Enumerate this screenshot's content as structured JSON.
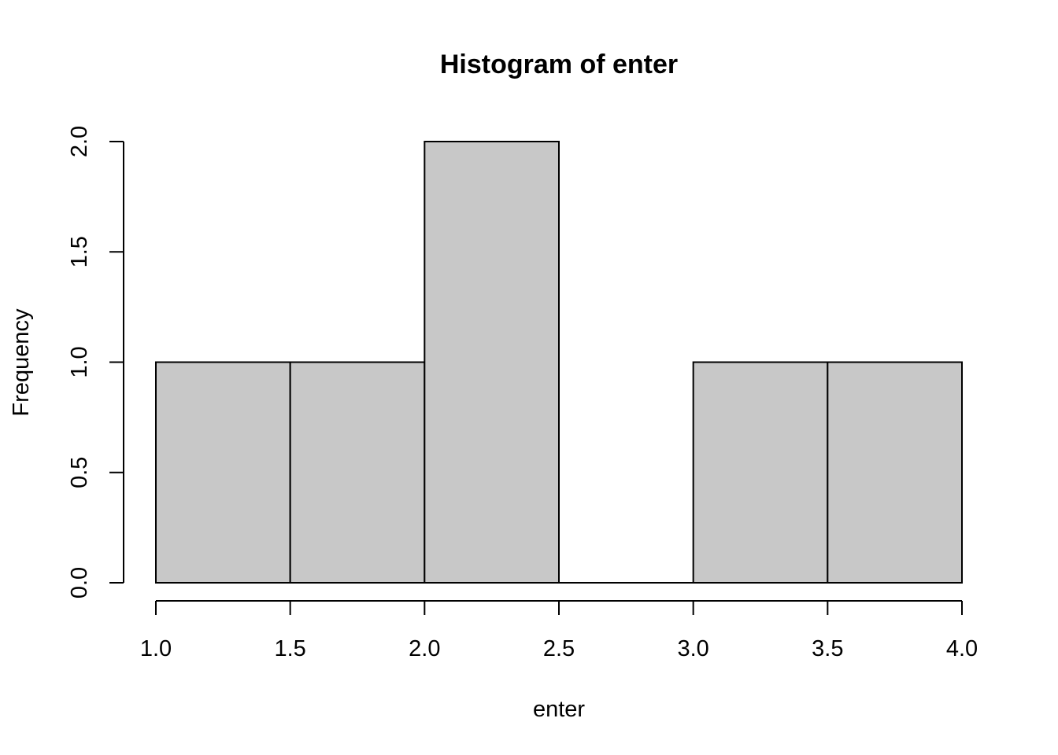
{
  "chart_data": {
    "type": "bar",
    "title": "Histogram of enter",
    "xlabel": "enter",
    "ylabel": "Frequency",
    "bins": [
      {
        "start": 1.0,
        "end": 1.5,
        "count": 1
      },
      {
        "start": 1.5,
        "end": 2.0,
        "count": 1
      },
      {
        "start": 2.0,
        "end": 2.5,
        "count": 2
      },
      {
        "start": 2.5,
        "end": 3.0,
        "count": 0
      },
      {
        "start": 3.0,
        "end": 3.5,
        "count": 1
      },
      {
        "start": 3.5,
        "end": 4.0,
        "count": 1
      }
    ],
    "xlim": [
      1.0,
      4.0
    ],
    "ylim": [
      0,
      2.0
    ],
    "x_ticks": [
      "1.0",
      "1.5",
      "2.0",
      "2.5",
      "3.0",
      "3.5",
      "4.0"
    ],
    "y_ticks": [
      "0.0",
      "0.5",
      "1.0",
      "1.5",
      "2.0"
    ],
    "bar_fill": "#c8c8c8",
    "grid": false
  }
}
